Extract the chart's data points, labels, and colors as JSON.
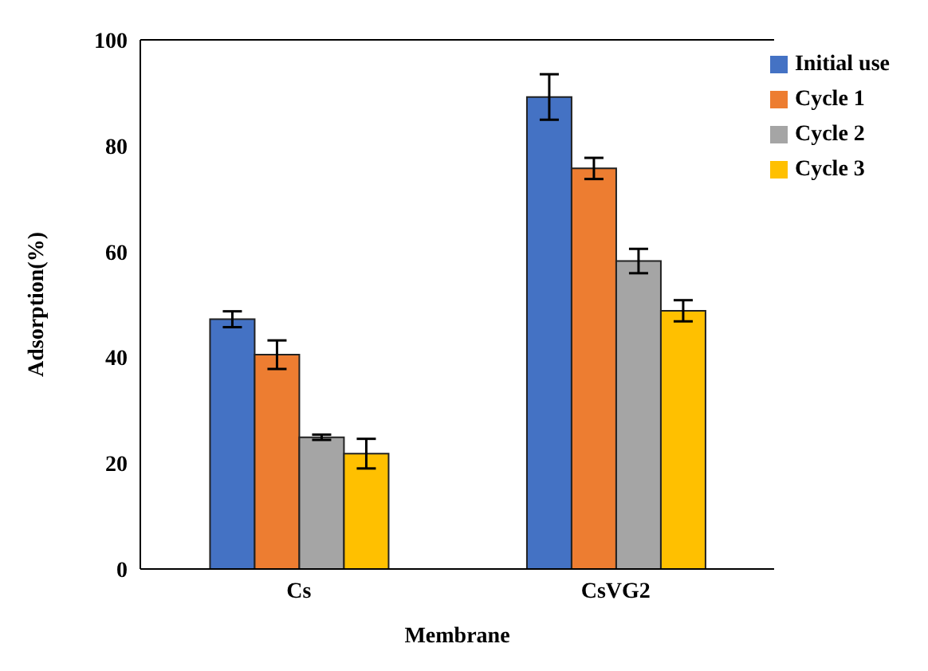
{
  "chart_data": {
    "type": "bar",
    "xlabel": "Membrane",
    "ylabel": "Adsorption(%)",
    "categories": [
      "Cs",
      "CsVG2"
    ],
    "series": [
      {
        "name": "Initial use",
        "color": "#4472c4",
        "values": [
          47.2,
          89.2
        ],
        "errors": [
          1.5,
          4.3
        ]
      },
      {
        "name": "Cycle 1",
        "color": "#ed7d31",
        "values": [
          40.5,
          75.7
        ],
        "errors": [
          2.7,
          2
        ]
      },
      {
        "name": "Cycle 2",
        "color": "#a5a5a5",
        "values": [
          24.9,
          58.2
        ],
        "errors": [
          0.5,
          2.3
        ]
      },
      {
        "name": "Cycle 3",
        "color": "#ffc000",
        "values": [
          21.8,
          48.8
        ],
        "errors": [
          2.8,
          2
        ]
      }
    ],
    "ylim": [
      0,
      100
    ],
    "yticks": [
      0,
      20,
      40,
      60,
      80,
      100
    ],
    "grid": false,
    "legend": "top right"
  }
}
